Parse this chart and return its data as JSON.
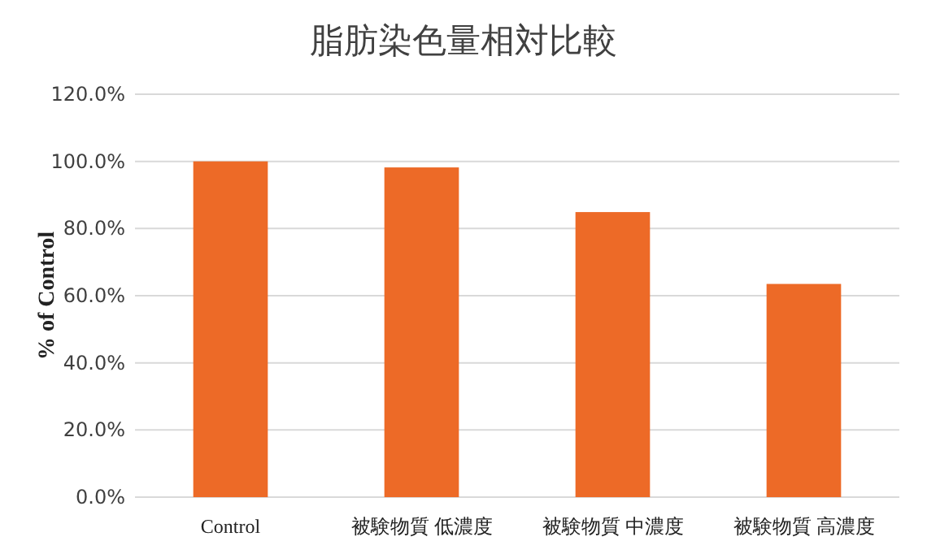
{
  "chart_data": {
    "type": "bar",
    "title": "脂肪染色量相対比較",
    "ylabel": "% of Control",
    "categories": [
      "Control",
      "被験物質 低濃度",
      "被験物質 中濃度",
      "被験物質 高濃度"
    ],
    "values": [
      100,
      98.2,
      84.9,
      63.5
    ],
    "color": "#ed6a27",
    "ylim": [
      0,
      120
    ],
    "yticks": [
      {
        "value": 0,
        "label": "0.0%"
      },
      {
        "value": 20,
        "label": "20.0%"
      },
      {
        "value": 40,
        "label": "40.0%"
      },
      {
        "value": 60,
        "label": "60.0%"
      },
      {
        "value": 80,
        "label": "80.0%"
      },
      {
        "value": 100,
        "label": "100.0%"
      },
      {
        "value": 120,
        "label": "120.0%"
      }
    ],
    "grid": "y"
  }
}
